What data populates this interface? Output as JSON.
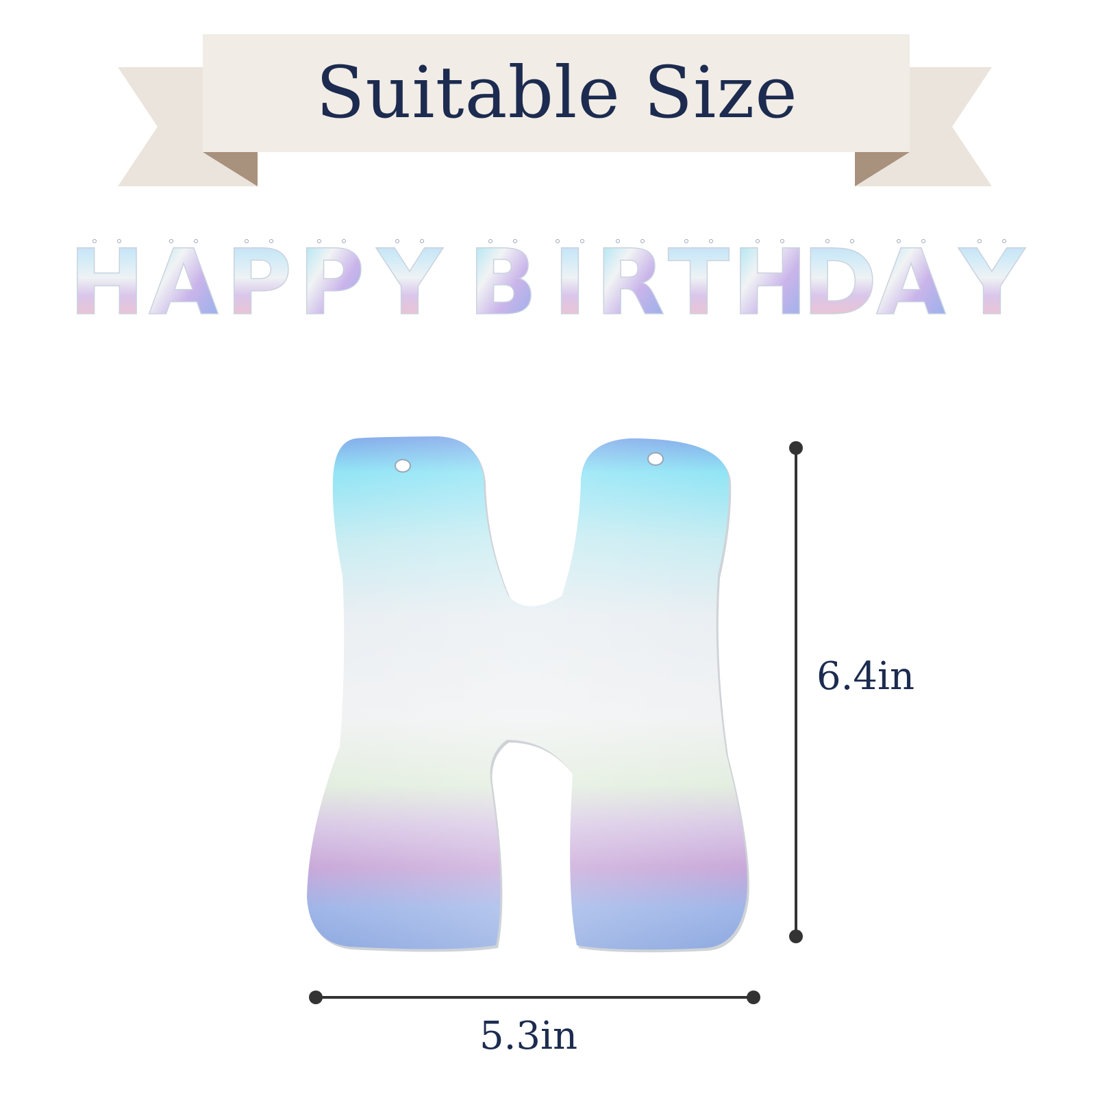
{
  "ribbon": {
    "title": "Suitable Size"
  },
  "banner": {
    "text": "HAPPY BIRTHDAY"
  },
  "letter": {
    "glyph": "H"
  },
  "dimensions": {
    "height": "6.4in",
    "width": "5.3in"
  },
  "colors": {
    "ribbon_face": "#f0ebe5",
    "ribbon_tail": "#e9e2da",
    "ribbon_fold": "#a8917d",
    "text": "#1c2b4f",
    "dimension_line": "#333333"
  }
}
